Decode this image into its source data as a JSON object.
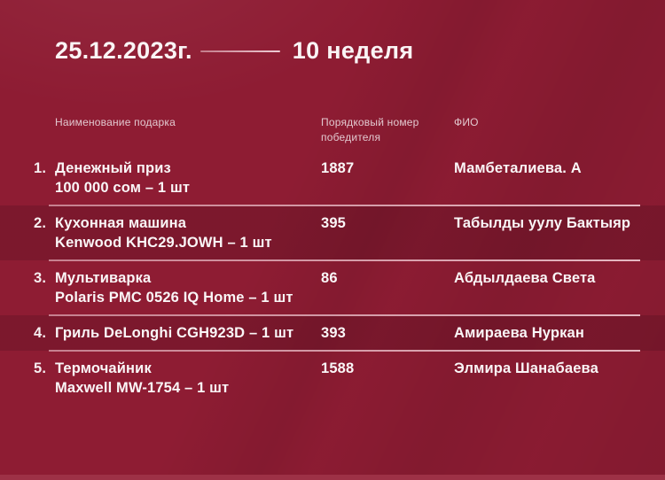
{
  "page": {
    "background_color": "#8e1c33",
    "highlight_row_color": "#7f152a",
    "rule_line_color": "#eec8d1",
    "text_primary_color": "#faf6f7",
    "text_muted_color": "#e2c8cf",
    "bottom_strip_color": "#9d3146"
  },
  "header": {
    "date": "25.12.2023г.",
    "week": "10 неделя"
  },
  "table": {
    "columns": {
      "gift": "Наименование подарка",
      "serial": "Порядковый номер победителя",
      "fio": "ФИО"
    },
    "rows": [
      {
        "num": "1.",
        "gift": [
          "Денежный приз",
          "100 000 сом – 1 шт"
        ],
        "serial": "1887",
        "fio": "Мамбеталиева. А",
        "highlighted": false
      },
      {
        "num": "2.",
        "gift": [
          "Кухонная машина",
          "Kenwood KHC29.JOWH – 1 шт"
        ],
        "serial": "395",
        "fio": "Табылды уулу Бактыяр",
        "highlighted": true
      },
      {
        "num": "3.",
        "gift": [
          "Мультиварка",
          "Polaris PMC 0526 IQ Home – 1 шт"
        ],
        "serial": "86",
        "fio": "Абдылдаева Света",
        "highlighted": false
      },
      {
        "num": "4.",
        "gift": [
          "Гриль DeLonghi CGH923D – 1 шт"
        ],
        "serial": "393",
        "fio": "Амираева Нуркан",
        "highlighted": true
      },
      {
        "num": "5.",
        "gift": [
          "Термочайник",
          "Maxwell MW-1754 – 1 шт"
        ],
        "serial": "1588",
        "fio": "Элмира Шанабаева",
        "highlighted": false
      }
    ]
  }
}
